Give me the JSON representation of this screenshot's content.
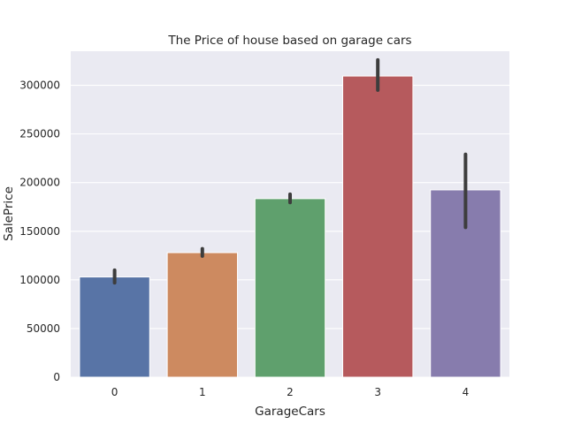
{
  "chart_data": {
    "type": "bar",
    "title": "The Price of house based on garage cars",
    "xlabel": "GarageCars",
    "ylabel": "SalePrice",
    "categories": [
      "0",
      "1",
      "2",
      "3",
      "4"
    ],
    "values": [
      103000,
      128000,
      183500,
      309500,
      192500
    ],
    "error_low": [
      97000,
      124500,
      179500,
      295000,
      154000
    ],
    "error_high": [
      110000,
      132000,
      188000,
      326000,
      229000
    ],
    "colors": [
      "#5874a6",
      "#cd8a60",
      "#5fa06d",
      "#b65a5d",
      "#877cad"
    ],
    "ylim": [
      0,
      335000
    ],
    "yticks": [
      0,
      50000,
      100000,
      150000,
      200000,
      250000,
      300000
    ],
    "ytick_labels": [
      "0",
      "50000",
      "100000",
      "150000",
      "200000",
      "250000",
      "300000"
    ],
    "grid": true,
    "background": "#eaeaf2",
    "errorbar_color": "#3d3d3d"
  }
}
